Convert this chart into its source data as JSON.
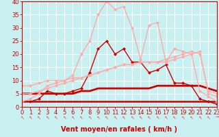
{
  "title": "",
  "xlabel": "Vent moyen/en rafales ( km/h )",
  "ylabel": "",
  "xlim": [
    0,
    23
  ],
  "ylim": [
    0,
    40
  ],
  "xticks": [
    0,
    1,
    2,
    3,
    4,
    5,
    6,
    7,
    8,
    9,
    10,
    11,
    12,
    13,
    14,
    15,
    16,
    17,
    18,
    19,
    20,
    21,
    22,
    23
  ],
  "yticks": [
    0,
    5,
    10,
    15,
    20,
    25,
    30,
    35,
    40
  ],
  "background_color": "#c8f0f0",
  "grid_color": "#ffffff",
  "series": [
    {
      "x": [
        0,
        1,
        2,
        3,
        4,
        5,
        6,
        7,
        8,
        9,
        10,
        11,
        12,
        13,
        14,
        15,
        16,
        17,
        18,
        19,
        20,
        21,
        22,
        23
      ],
      "y": [
        2,
        2,
        3,
        6,
        5,
        5,
        6,
        7,
        13,
        22,
        25,
        20,
        22,
        17,
        17,
        13,
        14,
        16,
        9,
        9,
        8,
        3,
        2,
        1
      ],
      "color": "#cc0000",
      "lw": 1.0,
      "marker": "D",
      "ms": 2.0
    },
    {
      "x": [
        0,
        1,
        2,
        3,
        4,
        5,
        6,
        7,
        8,
        9,
        10,
        11,
        12,
        13,
        14,
        15,
        16,
        17,
        18,
        19,
        20,
        21,
        22,
        23
      ],
      "y": [
        2,
        2,
        2,
        2,
        2,
        2,
        2,
        2,
        2,
        2,
        2,
        2,
        2,
        2,
        2,
        2,
        2,
        2,
        2,
        2,
        2,
        2,
        2,
        2
      ],
      "color": "#cc0000",
      "lw": 1.8,
      "marker": null,
      "ms": 0
    },
    {
      "x": [
        0,
        1,
        2,
        3,
        4,
        5,
        6,
        7,
        8,
        9,
        10,
        11,
        12,
        13,
        14,
        15,
        16,
        17,
        18,
        19,
        20,
        21,
        22,
        23
      ],
      "y": [
        5,
        5,
        5,
        5,
        5,
        5,
        5,
        6,
        6,
        7,
        7,
        7,
        7,
        7,
        7,
        7,
        8,
        8,
        8,
        8,
        8,
        8,
        7,
        6
      ],
      "color": "#cc0000",
      "lw": 2.0,
      "marker": null,
      "ms": 0
    },
    {
      "x": [
        0,
        1,
        2,
        3,
        4,
        5,
        6,
        7,
        8,
        9,
        10,
        11,
        12,
        13,
        14,
        15,
        16,
        17,
        18,
        19,
        20,
        21,
        22,
        23
      ],
      "y": [
        5,
        5,
        6,
        7,
        8,
        9,
        10,
        11,
        12,
        13,
        14,
        15,
        16,
        16,
        17,
        17,
        17,
        17,
        18,
        19,
        20,
        21,
        5,
        4
      ],
      "color": "#ffaaaa",
      "lw": 1.0,
      "marker": "D",
      "ms": 2.0
    },
    {
      "x": [
        0,
        1,
        2,
        3,
        4,
        5,
        6,
        7,
        8,
        9,
        10,
        11,
        12,
        13,
        14,
        15,
        16,
        17,
        18,
        19,
        20,
        21,
        22,
        23
      ],
      "y": [
        2,
        3,
        5,
        8,
        9,
        10,
        12,
        20,
        25,
        35,
        40,
        37,
        38,
        30,
        18,
        31,
        32,
        17,
        22,
        21,
        20,
        6,
        4,
        2
      ],
      "color": "#ffaaaa",
      "lw": 1.0,
      "marker": "D",
      "ms": 2.0
    },
    {
      "x": [
        0,
        1,
        2,
        3,
        4,
        5,
        6,
        7,
        8,
        9,
        10,
        11,
        12,
        13,
        14,
        15,
        16,
        17,
        18,
        19,
        20,
        21,
        22,
        23
      ],
      "y": [
        8,
        8,
        9,
        10,
        10,
        10,
        11,
        11,
        12,
        13,
        14,
        15,
        16,
        16,
        17,
        17,
        17,
        18,
        19,
        20,
        21,
        20,
        6,
        5
      ],
      "color": "#ffaaaa",
      "lw": 1.0,
      "marker": "D",
      "ms": 2.0
    }
  ],
  "arrow_color": "#dd4444",
  "xlabel_color": "#cc0000",
  "tick_color": "#cc0000",
  "tick_fontsize": 6,
  "xlabel_fontsize": 7
}
